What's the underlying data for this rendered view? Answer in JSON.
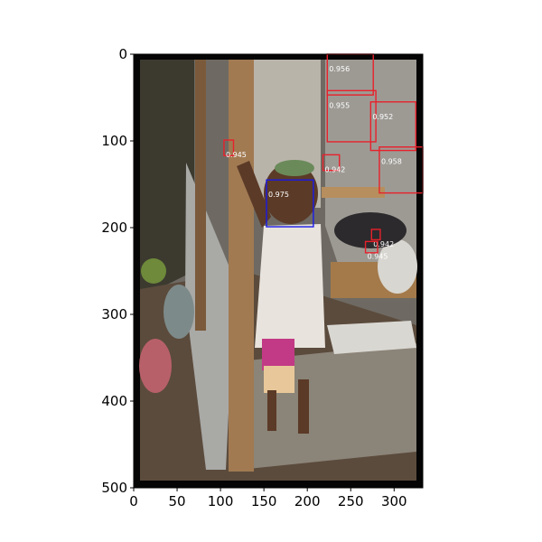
{
  "chart_data": {
    "type": "image-detection-overlay",
    "title": "",
    "xlabel": "",
    "ylabel": "",
    "xlim": [
      0,
      333
    ],
    "ylim": [
      500,
      0
    ],
    "x_ticks": [
      "0",
      "50",
      "100",
      "150",
      "200",
      "250",
      "300"
    ],
    "y_ticks": [
      "0",
      "100",
      "200",
      "300",
      "400",
      "500"
    ],
    "image": {
      "description_colors": {
        "frame": "#050505",
        "wall": "#6e6a63",
        "ground": "#4b3b2e",
        "wood": "#a17a52",
        "shirt": "#e8e3dc",
        "shorts": "#c23a86"
      }
    },
    "boxes": [
      {
        "label": "0.956",
        "color": "#e8212b",
        "x0": 223,
        "y0": 0,
        "x1": 276,
        "y1": 47
      },
      {
        "label": "0.955",
        "color": "#e8212b",
        "x0": 223,
        "y0": 42,
        "x1": 279,
        "y1": 101
      },
      {
        "label": "0.952",
        "color": "#e8212b",
        "x0": 273,
        "y0": 55,
        "x1": 325,
        "y1": 111
      },
      {
        "label": "0.958",
        "color": "#e8212b",
        "x0": 283,
        "y0": 107,
        "x1": 333,
        "y1": 160
      },
      {
        "label": "0.945",
        "color": "#e8212b",
        "x0": 104,
        "y0": 99,
        "x1": 115,
        "y1": 117
      },
      {
        "label": "0.942",
        "color": "#e8212b",
        "x0": 218,
        "y0": 116,
        "x1": 237,
        "y1": 134
      },
      {
        "label": "0.975",
        "color": "#1a1ae8",
        "x0": 153,
        "y0": 145,
        "x1": 207,
        "y1": 199
      },
      {
        "label": "0.942",
        "color": "#e8212b",
        "x0": 274,
        "y0": 202,
        "x1": 284,
        "y1": 214
      },
      {
        "label": "0.945",
        "color": "#e8212b",
        "x0": 267,
        "y0": 216,
        "x1": 281,
        "y1": 229
      }
    ]
  }
}
